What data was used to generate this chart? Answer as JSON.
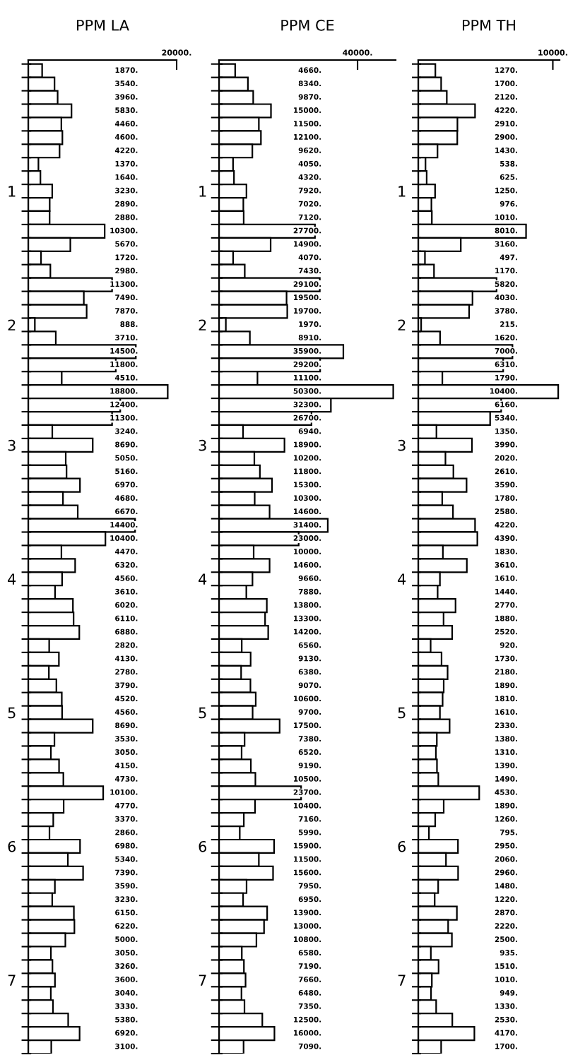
{
  "chart_data": [
    {
      "type": "bar",
      "orientation": "horizontal",
      "title": "PPM LA",
      "color": "#ffffff",
      "categories": [
        null,
        null,
        null,
        null,
        null,
        null,
        null,
        null,
        null,
        "1",
        null,
        null,
        null,
        null,
        null,
        null,
        null,
        null,
        null,
        "2",
        null,
        null,
        null,
        null,
        null,
        null,
        null,
        null,
        "3",
        null,
        null,
        null,
        null,
        null,
        null,
        null,
        null,
        null,
        "4",
        null,
        null,
        null,
        null,
        null,
        null,
        null,
        null,
        null,
        "5",
        null,
        null,
        null,
        null,
        null,
        null,
        null,
        null,
        null,
        "6",
        null,
        null,
        null,
        null,
        null,
        null,
        null,
        null,
        null,
        "7",
        null,
        null,
        null,
        null,
        null
      ],
      "values": [
        1870,
        3540,
        3960,
        5830,
        4460,
        4600,
        4220,
        1370,
        1640,
        3230,
        2890,
        2880,
        10300,
        5670,
        1720,
        2980,
        11300,
        7490,
        7870,
        888,
        3710,
        14500,
        11800,
        4510,
        18800,
        12400,
        11300,
        3240,
        8690,
        5050,
        5160,
        6970,
        4680,
        6670,
        14400,
        10400,
        4470,
        6320,
        4560,
        3610,
        6020,
        6110,
        6880,
        2820,
        4130,
        2780,
        3790,
        4520,
        4560,
        8690,
        3530,
        3050,
        4150,
        4730,
        10100,
        4770,
        3370,
        2860,
        6980,
        5340,
        7390,
        3590,
        3230,
        6150,
        6220,
        5000,
        3050,
        3260,
        3600,
        3040,
        3330,
        5380,
        6920,
        3100
      ],
      "value_labels": [
        "1870.",
        "3540.",
        "3960.",
        "5830.",
        "4460.",
        "4600.",
        "4220.",
        "1370.",
        "1640.",
        "3230.",
        "2890.",
        "2880.",
        "10300.",
        "5670.",
        "1720.",
        "2980.",
        "11300.",
        "7490.",
        "7870.",
        "888.",
        "3710.",
        "14500.",
        "11800.",
        "4510.",
        "18800.",
        "12400.",
        "11300.",
        "3240.",
        "8690.",
        "5050.",
        "5160.",
        "6970.",
        "4680.",
        "6670.",
        "14400.",
        "10400.",
        "4470.",
        "6320.",
        "4560.",
        "3610.",
        "6020.",
        "6110.",
        "6880.",
        "2820.",
        "4130.",
        "2780.",
        "3790.",
        "4520.",
        "4560.",
        "8690.",
        "3530.",
        "3050.",
        "4150.",
        "4730.",
        "10100.",
        "4770.",
        "3370.",
        "2860.",
        "6980.",
        "5340.",
        "7390.",
        "3590.",
        "3230.",
        "6150.",
        "6220.",
        "5000.",
        "3050.",
        "3260.",
        "3600.",
        "3040.",
        "3330.",
        "5380.",
        "6920.",
        "3100."
      ],
      "xlim": [
        0,
        20000
      ],
      "xticks": [
        {
          "value": 20000,
          "label": "20000."
        }
      ]
    },
    {
      "type": "bar",
      "orientation": "horizontal",
      "title": "PPM CE",
      "color": "#ffffff",
      "categories": [
        null,
        null,
        null,
        null,
        null,
        null,
        null,
        null,
        null,
        "1",
        null,
        null,
        null,
        null,
        null,
        null,
        null,
        null,
        null,
        "2",
        null,
        null,
        null,
        null,
        null,
        null,
        null,
        null,
        "3",
        null,
        null,
        null,
        null,
        null,
        null,
        null,
        null,
        null,
        "4",
        null,
        null,
        null,
        null,
        null,
        null,
        null,
        null,
        null,
        "5",
        null,
        null,
        null,
        null,
        null,
        null,
        null,
        null,
        null,
        "6",
        null,
        null,
        null,
        null,
        null,
        null,
        null,
        null,
        null,
        "7",
        null,
        null,
        null,
        null,
        null
      ],
      "values": [
        4660,
        8340,
        9870,
        15000,
        11500,
        12100,
        9620,
        4050,
        4320,
        7920,
        7020,
        7120,
        27700,
        14900,
        4070,
        7430,
        29100,
        19500,
        19700,
        1970,
        8910,
        35900,
        29200,
        11100,
        50300,
        32300,
        26700,
        6940,
        18900,
        10200,
        11800,
        15300,
        10300,
        14600,
        31400,
        23000,
        10000,
        14600,
        9660,
        7880,
        13800,
        13300,
        14200,
        6560,
        9130,
        6380,
        9070,
        10600,
        9700,
        17500,
        7380,
        6520,
        9190,
        10500,
        23700,
        10400,
        7160,
        5990,
        15900,
        11500,
        15600,
        7950,
        6950,
        13900,
        13000,
        10800,
        6580,
        7190,
        7660,
        6480,
        7350,
        12500,
        16000,
        7090
      ],
      "value_labels": [
        "4660.",
        "8340.",
        "9870.",
        "15000.",
        "11500.",
        "12100.",
        "9620.",
        "4050.",
        "4320.",
        "7920.",
        "7020.",
        "7120.",
        "27700.",
        "14900.",
        "4070.",
        "7430.",
        "29100.",
        "19500.",
        "19700.",
        "1970.",
        "8910.",
        "35900.",
        "29200.",
        "11100.",
        "50300.",
        "32300.",
        "26700.",
        "6940.",
        "18900.",
        "10200.",
        "11800.",
        "15300.",
        "10300.",
        "14600.",
        "31400.",
        "23000.",
        "10000.",
        "14600.",
        "9660.",
        "7880.",
        "13800.",
        "13300.",
        "14200.",
        "6560.",
        "9130.",
        "6380.",
        "9070.",
        "10600.",
        "9700.",
        "17500.",
        "7380.",
        "6520.",
        "9190.",
        "10500.",
        "23700.",
        "10400.",
        "7160.",
        "5990.",
        "15900.",
        "11500.",
        "15600.",
        "7950.",
        "6950.",
        "13900.",
        "13000.",
        "10800.",
        "6580.",
        "7190.",
        "7660.",
        "6480.",
        "7350.",
        "12500.",
        "16000.",
        "7090."
      ],
      "xlim": [
        0,
        51000
      ],
      "xticks": [
        {
          "value": 40000,
          "label": "40000."
        }
      ]
    },
    {
      "type": "bar",
      "orientation": "horizontal",
      "title": "PPM TH",
      "color": "#ffffff",
      "categories": [
        null,
        null,
        null,
        null,
        null,
        null,
        null,
        null,
        null,
        "1",
        null,
        null,
        null,
        null,
        null,
        null,
        null,
        null,
        null,
        "2",
        null,
        null,
        null,
        null,
        null,
        null,
        null,
        null,
        "3",
        null,
        null,
        null,
        null,
        null,
        null,
        null,
        null,
        null,
        "4",
        null,
        null,
        null,
        null,
        null,
        null,
        null,
        null,
        null,
        "5",
        null,
        null,
        null,
        null,
        null,
        null,
        null,
        null,
        null,
        "6",
        null,
        null,
        null,
        null,
        null,
        null,
        null,
        null,
        null,
        "7",
        null,
        null,
        null,
        null,
        null
      ],
      "values": [
        1270,
        1700,
        2120,
        4220,
        2910,
        2900,
        1430,
        538,
        625,
        1250,
        976,
        1010,
        8010,
        3160,
        497,
        1170,
        5820,
        4030,
        3780,
        215,
        1620,
        7000,
        6310,
        1790,
        10400,
        6160,
        5340,
        1350,
        3990,
        2020,
        2610,
        3590,
        1780,
        2580,
        4220,
        4390,
        1830,
        3610,
        1610,
        1440,
        2770,
        1880,
        2520,
        920,
        1730,
        2180,
        1890,
        1810,
        1610,
        2330,
        1380,
        1310,
        1390,
        1490,
        4530,
        1890,
        1260,
        795,
        2950,
        2060,
        2960,
        1480,
        1220,
        2870,
        2220,
        2500,
        935,
        1510,
        1010,
        949,
        1330,
        2530,
        4170,
        1700
      ],
      "value_labels": [
        "1270.",
        "1700.",
        "2120.",
        "4220.",
        "2910.",
        "2900.",
        "1430.",
        "538.",
        "625.",
        "1250.",
        "976.",
        "1010.",
        "8010.",
        "3160.",
        "497.",
        "1170.",
        "5820.",
        "4030.",
        "3780.",
        "215.",
        "1620.",
        "7000.",
        "6310.",
        "1790.",
        "10400.",
        "6160.",
        "5340.",
        "1350.",
        "3990.",
        "2020.",
        "2610.",
        "3590.",
        "1780.",
        "2580.",
        "4220.",
        "4390.",
        "1830.",
        "3610.",
        "1610.",
        "1440.",
        "2770.",
        "1880.",
        "2520.",
        "920.",
        "1730.",
        "2180.",
        "1890.",
        "1810.",
        "1610.",
        "2330.",
        "1380.",
        "1310.",
        "1390.",
        "1490.",
        "4530.",
        "1890.",
        "1260.",
        "795.",
        "2950.",
        "2060.",
        "2960.",
        "1480.",
        "1220.",
        "2870.",
        "2220.",
        "2500.",
        "935.",
        "1510.",
        "1010.",
        "949.",
        "1330.",
        "2530.",
        "4170.",
        "1700."
      ],
      "xlim": [
        0,
        10500
      ],
      "xticks": [
        {
          "value": 10000,
          "label": "10000."
        }
      ]
    }
  ]
}
